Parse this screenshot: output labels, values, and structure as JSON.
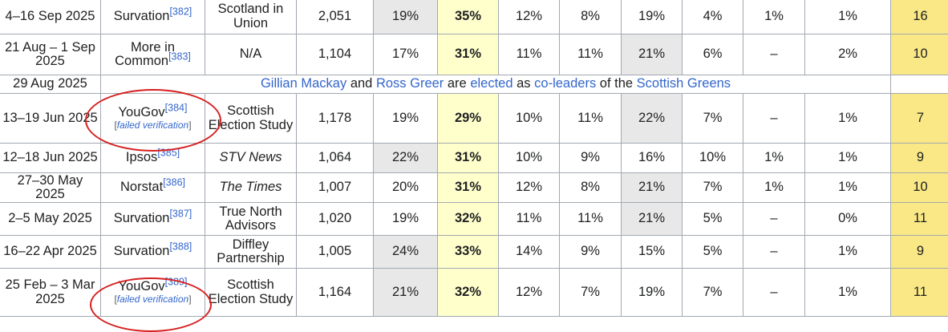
{
  "rows": [
    {
      "date": "4–16 Sep 2025",
      "pollster": "Survation",
      "ref": "[382]",
      "fv": "",
      "client": "Scotland in Union",
      "client_italic": false,
      "size": "2,051",
      "v": [
        "19%",
        "35%",
        "12%",
        "8%",
        "19%",
        "4%",
        "1%",
        "1%"
      ],
      "lead": "16"
    },
    {
      "date": "21 Aug – 1 Sep 2025",
      "pollster": "More in Common",
      "ref": "[383]",
      "fv": "",
      "client": "N/A",
      "client_italic": false,
      "size": "1,104",
      "v": [
        "17%",
        "31%",
        "11%",
        "11%",
        "21%",
        "6%",
        "–",
        "2%"
      ],
      "lead": "10"
    },
    {
      "date": "13–19 Jun 2025",
      "pollster": "YouGov",
      "ref": "[384]",
      "fv": "failed verification",
      "client": "Scottish Election Study",
      "client_italic": false,
      "size": "1,178",
      "v": [
        "19%",
        "29%",
        "10%",
        "11%",
        "22%",
        "7%",
        "–",
        "1%"
      ],
      "lead": "7"
    },
    {
      "date": "12–18 Jun 2025",
      "pollster": "Ipsos",
      "ref": "[385]",
      "fv": "",
      "client": "STV News",
      "client_italic": true,
      "size": "1,064",
      "v": [
        "22%",
        "31%",
        "10%",
        "9%",
        "16%",
        "10%",
        "1%",
        "1%"
      ],
      "lead": "9"
    },
    {
      "date": "27–30 May 2025",
      "pollster": "Norstat",
      "ref": "[386]",
      "fv": "",
      "client": "The Times",
      "client_italic": true,
      "size": "1,007",
      "v": [
        "20%",
        "31%",
        "12%",
        "8%",
        "21%",
        "7%",
        "1%",
        "1%"
      ],
      "lead": "10"
    },
    {
      "date": "2–5 May 2025",
      "pollster": "Survation",
      "ref": "[387]",
      "fv": "",
      "client": "True North Advisors",
      "client_italic": false,
      "size": "1,020",
      "v": [
        "19%",
        "32%",
        "11%",
        "11%",
        "21%",
        "5%",
        "–",
        "0%"
      ],
      "lead": "11"
    },
    {
      "date": "16–22 Apr 2025",
      "pollster": "Survation",
      "ref": "[388]",
      "fv": "",
      "client": "Diffley Partnership",
      "client_italic": false,
      "size": "1,005",
      "v": [
        "24%",
        "33%",
        "14%",
        "9%",
        "15%",
        "5%",
        "–",
        "1%"
      ],
      "lead": "9"
    },
    {
      "date": "25 Feb – 3 Mar 2025",
      "pollster": "YouGov",
      "ref": "[389]",
      "fv": "failed verification",
      "client": "Scottish Election Study",
      "client_italic": false,
      "size": "1,164",
      "v": [
        "21%",
        "32%",
        "12%",
        "7%",
        "19%",
        "7%",
        "–",
        "1%"
      ],
      "lead": "11"
    }
  ],
  "event": {
    "date": "29 Aug 2025",
    "p1": "Gillian Mackay",
    "t1": " and ",
    "p2": "Ross Greer",
    "t2": " are ",
    "p3": "elected",
    "t3": " as ",
    "p4": "co-leaders",
    "t4": " of the ",
    "p5": "Scottish Greens"
  },
  "colors": {
    "lead_cell": "#ffffcc",
    "second_cell": "#e8e8e8",
    "margin_cell": "#f9e885",
    "link": "#3366cc",
    "annotation": "#d62020"
  }
}
